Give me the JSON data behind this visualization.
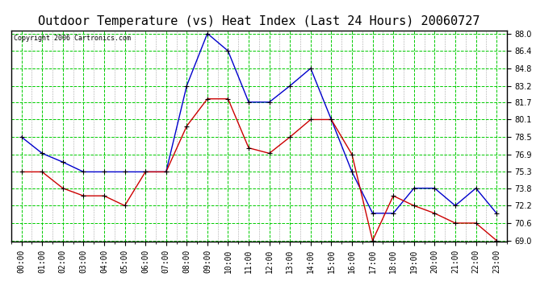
{
  "title": "Outdoor Temperature (vs) Heat Index (Last 24 Hours) 20060727",
  "copyright": "Copyright 2006 Cartronics.com",
  "hours": [
    "00:00",
    "01:00",
    "02:00",
    "03:00",
    "04:00",
    "05:00",
    "06:00",
    "07:00",
    "08:00",
    "09:00",
    "10:00",
    "11:00",
    "12:00",
    "13:00",
    "14:00",
    "15:00",
    "16:00",
    "17:00",
    "18:00",
    "19:00",
    "20:00",
    "21:00",
    "22:00",
    "23:00"
  ],
  "temp": [
    78.5,
    77.0,
    76.2,
    75.3,
    75.3,
    75.3,
    75.3,
    75.3,
    83.2,
    88.0,
    86.4,
    81.7,
    81.7,
    83.2,
    84.8,
    80.1,
    75.3,
    71.5,
    71.5,
    73.8,
    73.8,
    72.2,
    73.8,
    71.5
  ],
  "heat_index": [
    75.3,
    75.3,
    73.8,
    73.1,
    73.1,
    72.2,
    75.3,
    75.3,
    79.5,
    82.0,
    82.0,
    77.5,
    77.0,
    78.5,
    80.1,
    80.1,
    76.9,
    69.0,
    73.1,
    72.2,
    71.5,
    70.6,
    70.6,
    69.0
  ],
  "temp_color": "#0000cc",
  "heat_color": "#cc0000",
  "grid_color": "#00cc00",
  "bg_color": "#ffffff",
  "ylim_min": 69.0,
  "ylim_max": 88.0,
  "yticks": [
    69.0,
    70.6,
    72.2,
    73.8,
    75.3,
    76.9,
    78.5,
    80.1,
    81.7,
    83.2,
    84.8,
    86.4,
    88.0
  ],
  "title_fontsize": 11,
  "copyright_fontsize": 6,
  "tick_fontsize": 7
}
